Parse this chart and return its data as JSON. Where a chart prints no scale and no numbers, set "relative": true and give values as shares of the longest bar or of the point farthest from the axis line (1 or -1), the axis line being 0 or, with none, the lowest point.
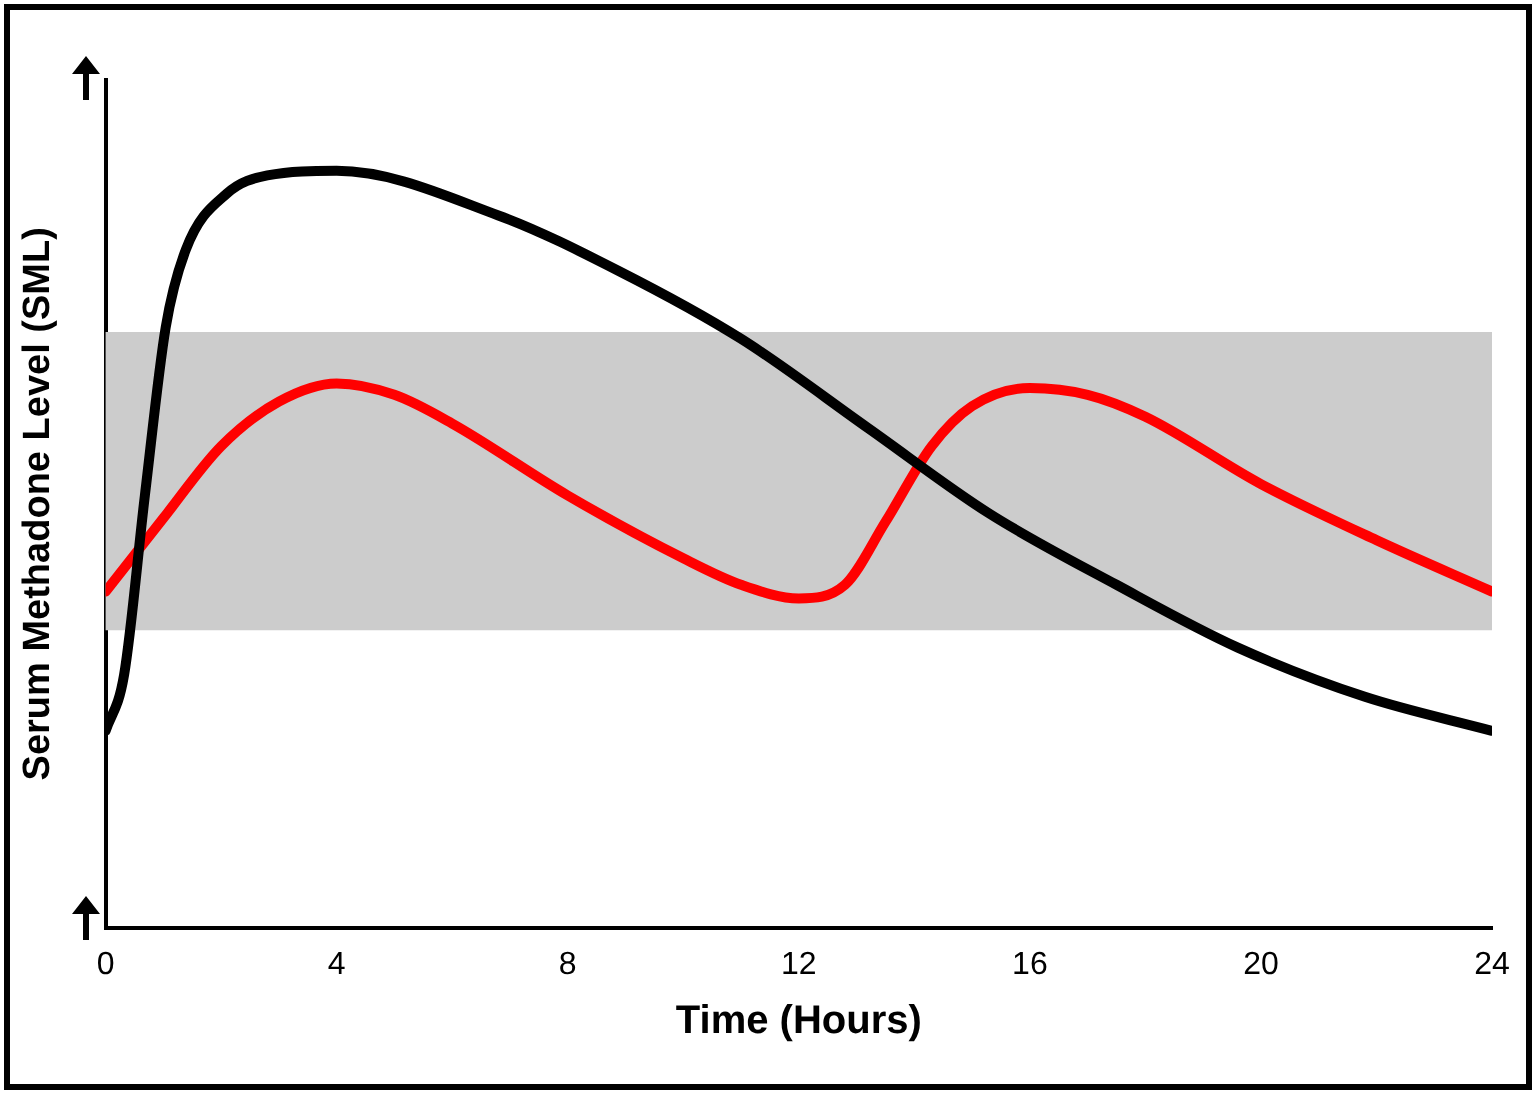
{
  "chart_data": {
    "type": "line",
    "relative": true,
    "xlabel": "Time (Hours)",
    "ylabel": "Serum Methadone Level (SML)",
    "xlim": [
      0,
      24
    ],
    "xticks": [
      0,
      4,
      8,
      12,
      16,
      20,
      24
    ],
    "grid": false,
    "legend": false,
    "marker": "none",
    "line_style": "solid",
    "bands": [
      {
        "axis": "y",
        "from": 0.393,
        "to": 0.787,
        "color": "#cccccc"
      }
    ],
    "series": [
      {
        "color": "#000000",
        "x": [
          0,
          0.32,
          0.68,
          1.04,
          1.39,
          2.1,
          2.8,
          4,
          6.8,
          8.9,
          11,
          13.2,
          15.3,
          17.5,
          19.6,
          21.8,
          24
        ],
        "values": [
          0.26,
          0.334,
          0.571,
          0.793,
          0.896,
          0.97,
          0.994,
          1,
          0.941,
          0.867,
          0.778,
          0.66,
          0.547,
          0.453,
          0.37,
          0.305,
          0.26
        ]
      },
      {
        "color": "#ff0000",
        "x": [
          0,
          1,
          2,
          3,
          4,
          5,
          6,
          8,
          10,
          11,
          12,
          12.8,
          13.5,
          14.3,
          15,
          16,
          17,
          18,
          20,
          22,
          24
        ],
        "values": [
          0.444,
          0.541,
          0.636,
          0.695,
          0.719,
          0.704,
          0.666,
          0.571,
          0.488,
          0.453,
          0.435,
          0.453,
          0.536,
          0.636,
          0.689,
          0.713,
          0.704,
          0.675,
          0.586,
          0.512,
          0.444
        ]
      }
    ]
  }
}
